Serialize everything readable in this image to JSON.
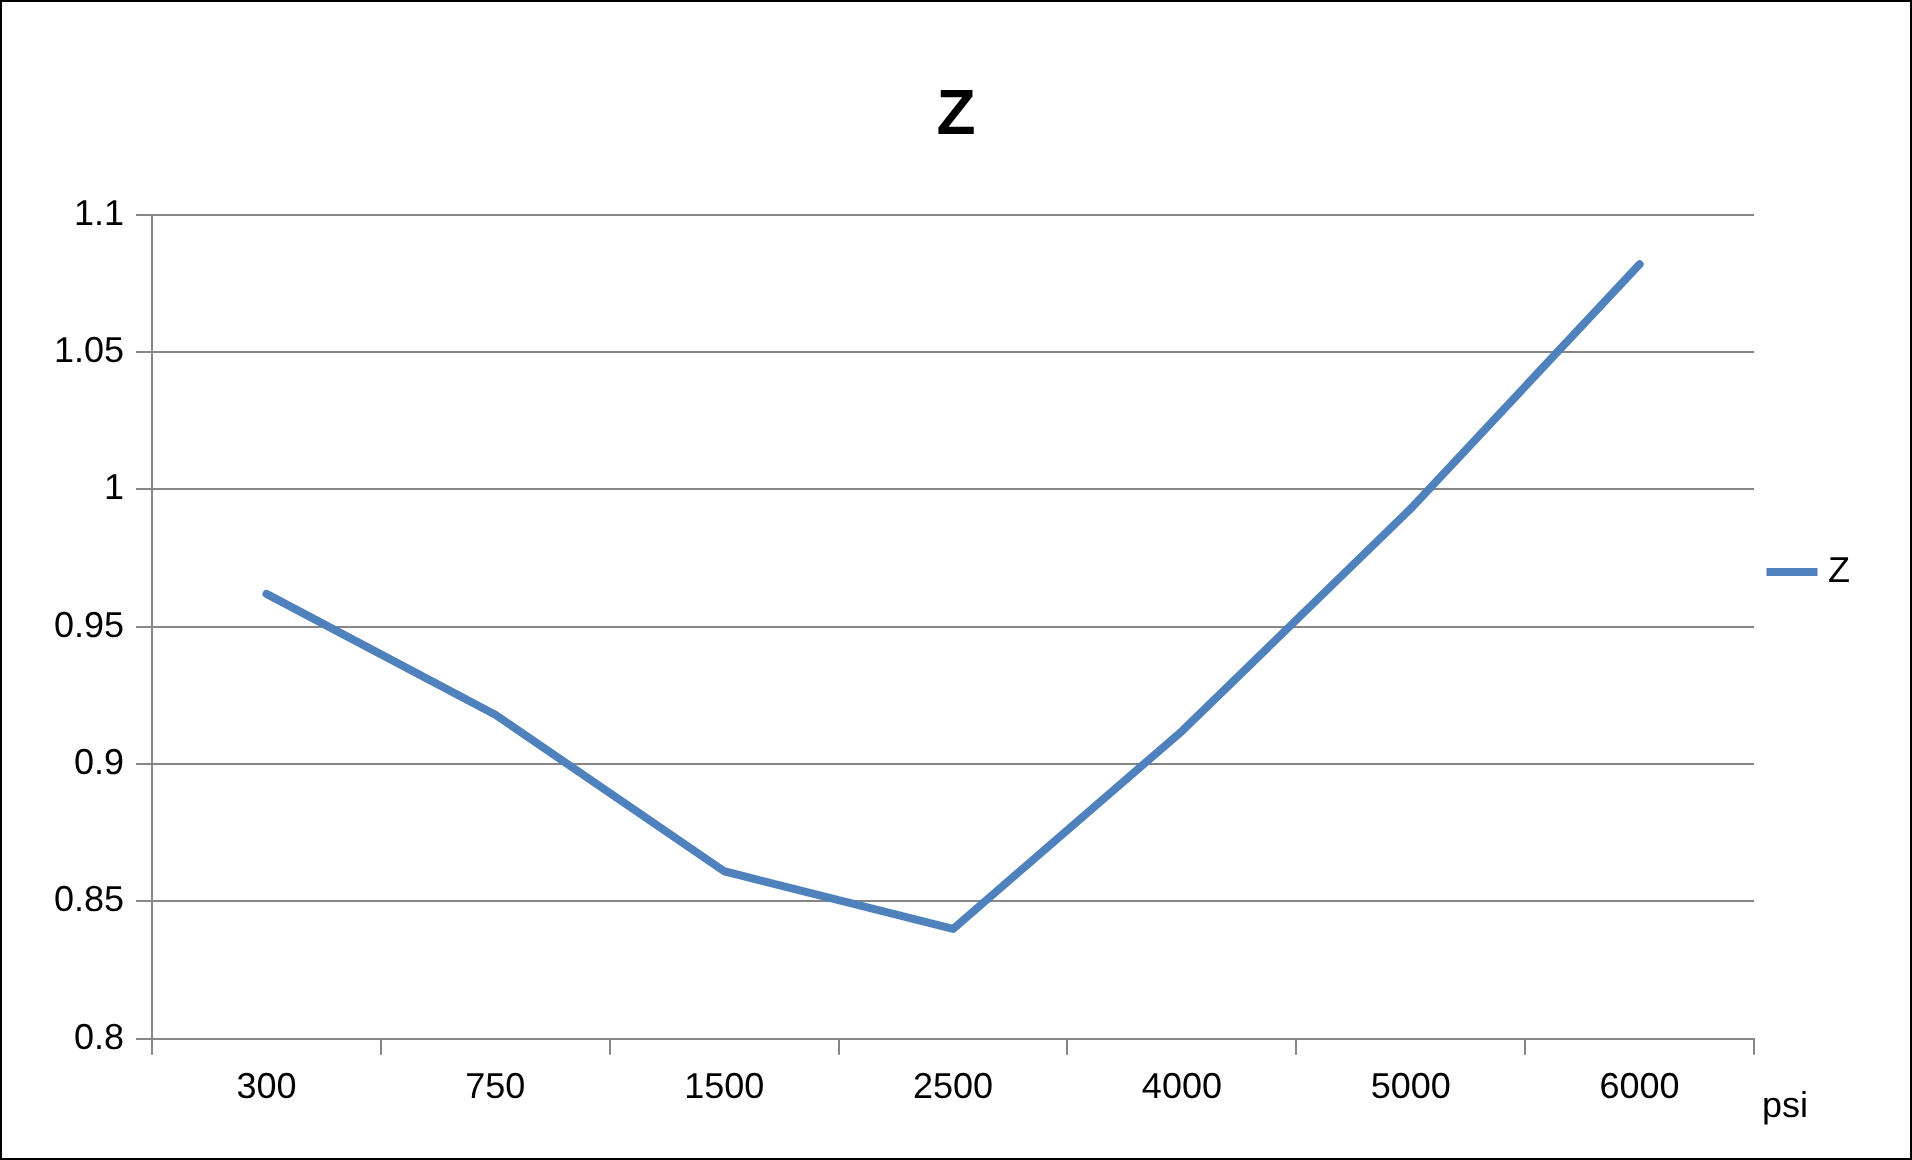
{
  "chart_data": {
    "type": "line",
    "title": "Z",
    "xlabel": "psi",
    "categories": [
      "300",
      "750",
      "1500",
      "2500",
      "4000",
      "5000",
      "6000"
    ],
    "series": [
      {
        "name": "Z",
        "color": "#4f81bd",
        "values": [
          0.962,
          0.918,
          0.861,
          0.84,
          0.912,
          0.993,
          1.082
        ]
      }
    ],
    "ylim": [
      0.8,
      1.1
    ],
    "yticks": [
      0.8,
      0.85,
      0.9,
      0.95,
      1,
      1.05,
      1.1
    ],
    "grid": "y",
    "legend": "right",
    "marker": "none",
    "line_style": "solid"
  }
}
